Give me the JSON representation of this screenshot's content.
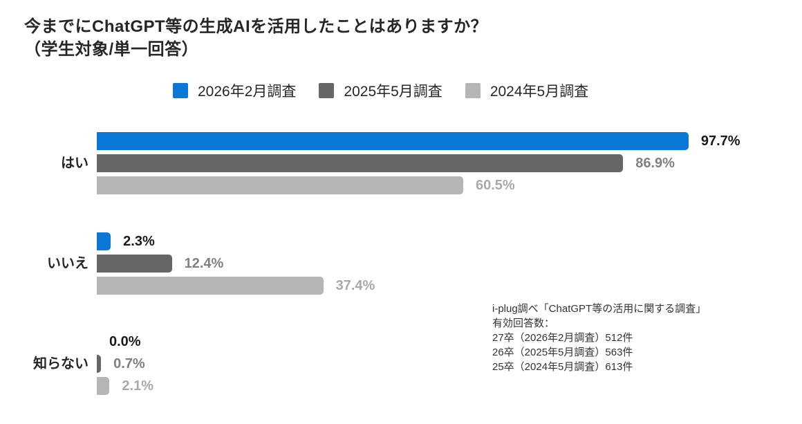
{
  "title": {
    "line1": "今までにChatGPT等の生成AIを活用したことはありますか？",
    "line2": "（学生対象/単一回答）"
  },
  "chart_data": {
    "type": "bar",
    "orientation": "horizontal",
    "title": "今までにChatGPT等の生成AIを活用したことはありますか？（学生対象/単一回答）",
    "categories": [
      "はい",
      "いいえ",
      "知らない"
    ],
    "series": [
      {
        "name": "2026年2月調査",
        "color": "#0b78d8",
        "label_color": "#1a1a1a",
        "values": [
          97.7,
          2.3,
          0.0
        ]
      },
      {
        "name": "2025年5月調査",
        "color": "#666666",
        "label_color": "#808080",
        "values": [
          86.9,
          12.4,
          0.7
        ]
      },
      {
        "name": "2024年5月調査",
        "color": "#b5b5b5",
        "label_color": "#a9a9a9",
        "values": [
          60.5,
          37.4,
          2.1
        ]
      }
    ],
    "value_suffix": "%",
    "value_decimals": 1,
    "xlim": [
      0,
      100
    ],
    "grid": false,
    "legend_position": "top",
    "value_labels": true
  },
  "annotation": {
    "lines": [
      "i-plug調べ「ChatGPT等の活用に関する調査」",
      "有効回答数：",
      "27卒（2026年2月調査）512件",
      "26卒（2025年5月調査）563件",
      "25卒（2024年5月調査）613件"
    ]
  }
}
